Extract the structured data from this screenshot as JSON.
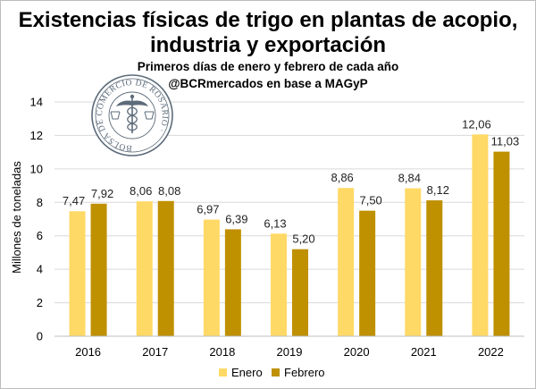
{
  "chart_data": {
    "type": "bar",
    "title": "Existencias físicas de trigo en plantas de acopio, industria y exportación",
    "title_lines": [
      "Existencias físicas de trigo en plantas de acopio,",
      "industria y exportación"
    ],
    "subtitle": "Primeros días de enero y febrero de cada año",
    "source": "@BCRmercados en base a MAGyP",
    "xlabel": "",
    "ylabel": "Millones de toneladas",
    "ylim": [
      0,
      14
    ],
    "yticks": [
      0,
      2,
      4,
      6,
      8,
      10,
      12,
      14
    ],
    "grid": true,
    "legend_position": "bottom",
    "categories": [
      "2016",
      "2017",
      "2018",
      "2019",
      "2020",
      "2021",
      "2022"
    ],
    "series": [
      {
        "name": "Enero",
        "color": "#ffd966",
        "values": [
          7.47,
          8.06,
          6.97,
          6.13,
          8.86,
          8.84,
          12.06
        ],
        "labels": [
          "7,47",
          "8,06",
          "6,97",
          "6,13",
          "8,86",
          "8,84",
          "12,06"
        ]
      },
      {
        "name": "Febrero",
        "color": "#bf9000",
        "values": [
          7.92,
          8.08,
          6.39,
          5.2,
          7.5,
          8.12,
          11.03
        ],
        "labels": [
          "7,92",
          "8,08",
          "6,39",
          "5,20",
          "7,50",
          "8,12",
          "11,03"
        ]
      }
    ]
  },
  "logo": {
    "name": "Bolsa de Comercio de Rosario seal",
    "text": "BOLSA DE COMERCIO DE ROSARIO",
    "color": "#5c6b7a"
  }
}
